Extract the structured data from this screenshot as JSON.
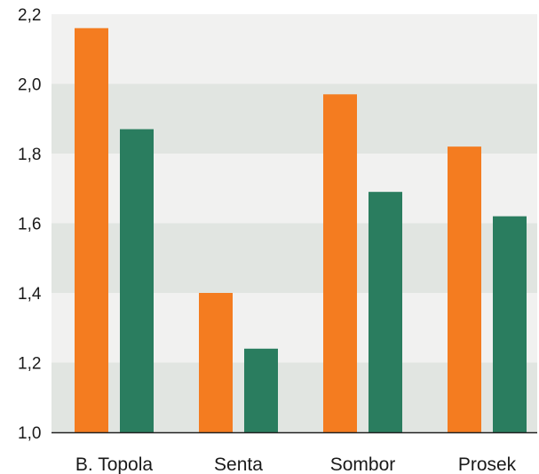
{
  "chart_data": {
    "type": "bar",
    "categories": [
      "B. Topola",
      "Senta",
      "Sombor",
      "Prosek"
    ],
    "series": [
      {
        "values": [
          2.16,
          1.4,
          1.97,
          1.82
        ]
      },
      {
        "values": [
          1.87,
          1.24,
          1.69,
          1.62
        ]
      }
    ],
    "colors": {
      "series": [
        "#f47c20",
        "#2a7d5f"
      ],
      "band_light": "#f1f1f0",
      "band_dark": "#e1e5e1",
      "axis": "#222222"
    },
    "ylim": [
      1.0,
      2.2
    ],
    "y_ticks": [
      1.0,
      1.2,
      1.4,
      1.6,
      1.8,
      2.0,
      2.2
    ],
    "y_tick_labels": [
      "1,0",
      "1,2",
      "1,4",
      "1,6",
      "1,8",
      "2,0",
      "2,2"
    ],
    "grid": "alternating horizontal bands",
    "legend": "none",
    "title": "",
    "xlabel": "",
    "ylabel": ""
  }
}
